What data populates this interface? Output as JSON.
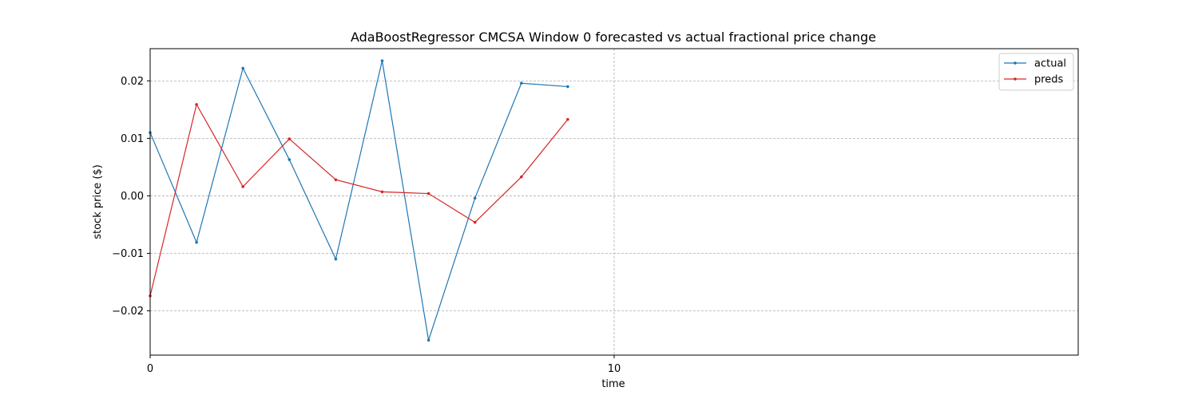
{
  "chart_data": {
    "type": "line",
    "title": "AdaBoostRegressor CMCSA Window 0 forecasted vs actual fractional price change",
    "xlabel": "time",
    "ylabel": "stock price ($)",
    "xlim": [
      0,
      20
    ],
    "ylim": [
      -0.0277,
      0.0256
    ],
    "xticks": [
      0,
      10
    ],
    "xtick_labels": [
      "0",
      "10"
    ],
    "yticks": [
      -0.02,
      -0.01,
      0.0,
      0.01,
      0.02
    ],
    "ytick_labels": [
      "−0.02",
      "−0.01",
      "0.00",
      "0.01",
      "0.02"
    ],
    "grid": true,
    "legend_position": "top-right",
    "x": [
      0,
      1,
      2,
      3,
      4,
      5,
      6,
      7,
      8,
      9
    ],
    "series": [
      {
        "name": "actual",
        "color": "#1f77b4",
        "values": [
          0.011,
          -0.0081,
          0.0222,
          0.0063,
          -0.011,
          0.0235,
          -0.0251,
          -0.0004,
          0.0196,
          0.019
        ]
      },
      {
        "name": "preds",
        "color": "#d62728",
        "values": [
          -0.0174,
          0.0159,
          0.0016,
          0.0099,
          0.0028,
          0.0007,
          0.0004,
          -0.0046,
          0.0033,
          0.0133
        ]
      }
    ]
  }
}
